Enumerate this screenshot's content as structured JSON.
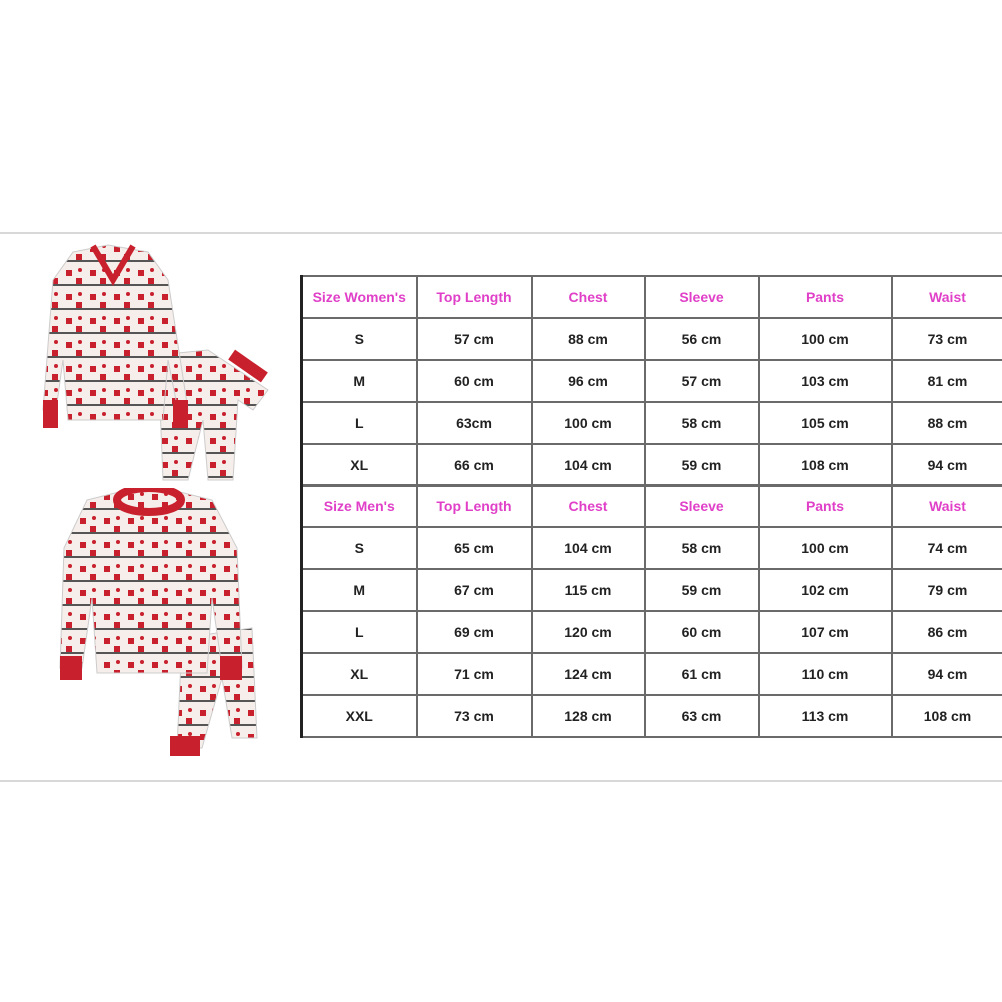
{
  "colors": {
    "header_text": "#e040c8",
    "pajama_red": "#c8202c",
    "border": "#6a6a6a"
  },
  "images": {
    "women_pajama": "women-pajama-set-reindeer-pattern",
    "men_pajama": "men-pajama-set-reindeer-pattern"
  },
  "women_table": {
    "headers": [
      "Size Women's",
      "Top Length",
      "Chest",
      "Sleeve",
      "Pants",
      "Waist"
    ],
    "rows": [
      [
        "S",
        "57 cm",
        "88 cm",
        "56 cm",
        "100 cm",
        "73 cm"
      ],
      [
        "M",
        "60 cm",
        "96 cm",
        "57 cm",
        "103 cm",
        "81 cm"
      ],
      [
        "L",
        "63cm",
        "100 cm",
        "58 cm",
        "105 cm",
        "88 cm"
      ],
      [
        "XL",
        "66 cm",
        "104 cm",
        "59 cm",
        "108 cm",
        "94 cm"
      ]
    ]
  },
  "men_table": {
    "headers": [
      "Size Men's",
      "Top Length",
      "Chest",
      "Sleeve",
      "Pants",
      "Waist"
    ],
    "rows": [
      [
        "S",
        "65 cm",
        "104 cm",
        "58 cm",
        "100 cm",
        "74 cm"
      ],
      [
        "M",
        "67 cm",
        "115 cm",
        "59 cm",
        "102 cm",
        "79 cm"
      ],
      [
        "L",
        "69 cm",
        "120 cm",
        "60 cm",
        "107 cm",
        "86 cm"
      ],
      [
        "XL",
        "71 cm",
        "124 cm",
        "61 cm",
        "110 cm",
        "94 cm"
      ],
      [
        "XXL",
        "73 cm",
        "128 cm",
        "63 cm",
        "113 cm",
        "108 cm"
      ]
    ]
  }
}
